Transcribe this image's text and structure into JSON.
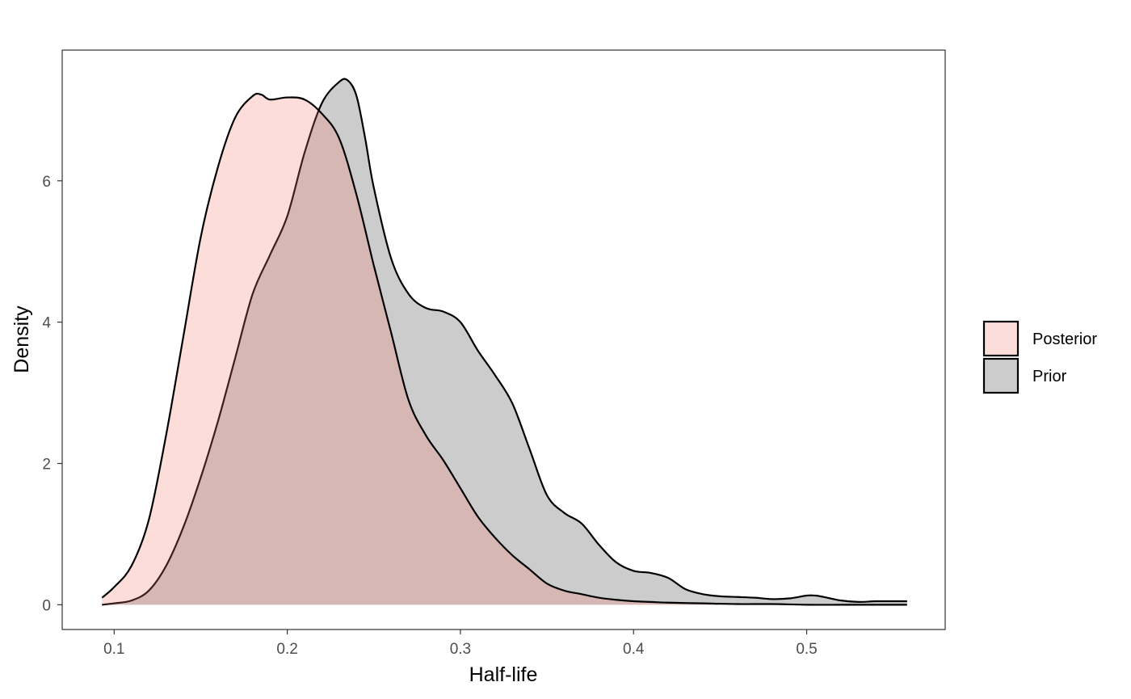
{
  "chart_data": {
    "type": "area",
    "title": "",
    "xlabel": "Half-life",
    "ylabel": "Density",
    "xlim": [
      0.07,
      0.58
    ],
    "ylim": [
      -0.35,
      7.85
    ],
    "xticks": [
      0.1,
      0.2,
      0.3,
      0.4,
      0.5
    ],
    "xtick_labels": [
      "0.1",
      "0.2",
      "0.3",
      "0.4",
      "0.5"
    ],
    "yticks": [
      0,
      2,
      4,
      6
    ],
    "ytick_labels": [
      "0",
      "2",
      "4",
      "6"
    ],
    "grid": false,
    "legend_position": "right",
    "series": [
      {
        "name": "Prior",
        "fill": "#cccccc",
        "x": [
          0.093,
          0.1,
          0.11,
          0.12,
          0.13,
          0.14,
          0.15,
          0.16,
          0.17,
          0.18,
          0.19,
          0.2,
          0.21,
          0.22,
          0.23,
          0.235,
          0.24,
          0.245,
          0.25,
          0.26,
          0.27,
          0.28,
          0.29,
          0.3,
          0.31,
          0.32,
          0.33,
          0.34,
          0.35,
          0.36,
          0.37,
          0.38,
          0.39,
          0.4,
          0.41,
          0.42,
          0.43,
          0.44,
          0.45,
          0.46,
          0.47,
          0.48,
          0.49,
          0.5,
          0.505,
          0.51,
          0.52,
          0.53,
          0.54,
          0.55,
          0.558
        ],
        "y": [
          0.0,
          0.02,
          0.06,
          0.2,
          0.55,
          1.1,
          1.8,
          2.6,
          3.5,
          4.4,
          4.95,
          5.5,
          6.4,
          7.1,
          7.4,
          7.42,
          7.2,
          6.6,
          5.9,
          4.9,
          4.4,
          4.2,
          4.15,
          4.0,
          3.6,
          3.25,
          2.85,
          2.2,
          1.55,
          1.3,
          1.15,
          0.85,
          0.6,
          0.48,
          0.45,
          0.38,
          0.22,
          0.15,
          0.12,
          0.11,
          0.1,
          0.08,
          0.09,
          0.13,
          0.13,
          0.11,
          0.06,
          0.04,
          0.05,
          0.05,
          0.05
        ]
      },
      {
        "name": "Posterior",
        "fill": "#f8766d",
        "x": [
          0.093,
          0.1,
          0.11,
          0.12,
          0.13,
          0.14,
          0.15,
          0.16,
          0.17,
          0.18,
          0.185,
          0.19,
          0.2,
          0.21,
          0.22,
          0.23,
          0.24,
          0.25,
          0.26,
          0.27,
          0.28,
          0.29,
          0.3,
          0.31,
          0.32,
          0.33,
          0.34,
          0.35,
          0.36,
          0.37,
          0.38,
          0.39,
          0.4,
          0.41,
          0.42,
          0.44,
          0.46,
          0.48,
          0.5,
          0.52,
          0.54,
          0.558
        ],
        "y": [
          0.1,
          0.25,
          0.55,
          1.2,
          2.4,
          3.8,
          5.2,
          6.2,
          6.9,
          7.2,
          7.22,
          7.15,
          7.18,
          7.15,
          6.95,
          6.6,
          5.8,
          4.8,
          3.85,
          2.9,
          2.4,
          2.05,
          1.65,
          1.25,
          0.95,
          0.7,
          0.5,
          0.3,
          0.2,
          0.15,
          0.1,
          0.07,
          0.05,
          0.04,
          0.03,
          0.02,
          0.01,
          0.01,
          0.0,
          0.0,
          0.0,
          0.0
        ]
      }
    ],
    "legend": [
      {
        "name": "Posterior",
        "fill": "#f8766d"
      },
      {
        "name": "Prior",
        "fill": "#cccccc"
      }
    ]
  }
}
